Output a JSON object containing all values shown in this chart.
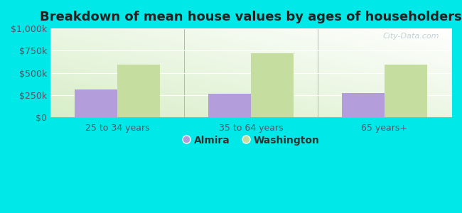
{
  "title": "Breakdown of mean house values by ages of householders",
  "categories": [
    "25 to 34 years",
    "35 to 64 years",
    "65 years+"
  ],
  "almira_values": [
    310000,
    260000,
    275000
  ],
  "washington_values": [
    590000,
    720000,
    590000
  ],
  "almira_color": "#b39ddb",
  "washington_color": "#c5dea0",
  "background_outer": "#00e8e8",
  "ylim": [
    0,
    1000000
  ],
  "yticks": [
    0,
    250000,
    500000,
    750000,
    1000000
  ],
  "ytick_labels": [
    "$0",
    "$250k",
    "$500k",
    "$750k",
    "$1,000k"
  ],
  "legend_labels": [
    "Almira",
    "Washington"
  ],
  "bar_width": 0.32,
  "title_fontsize": 13,
  "tick_fontsize": 9,
  "legend_fontsize": 10
}
